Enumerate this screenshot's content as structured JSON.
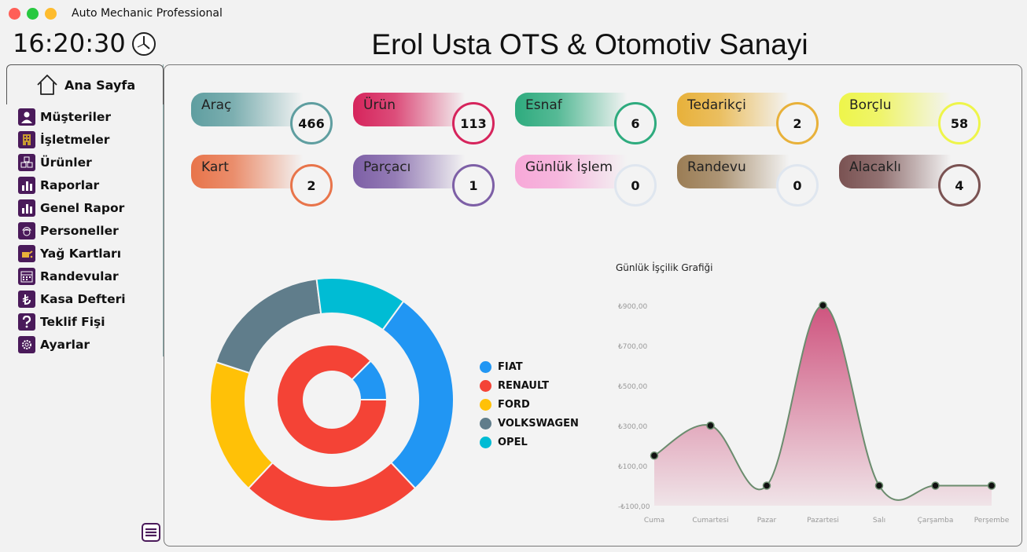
{
  "window": {
    "title": "Auto Mechanic Professional"
  },
  "clock": {
    "time": "16:20:30"
  },
  "header": {
    "title": "Erol Usta OTS & Otomotiv Sanayi"
  },
  "sidebar": {
    "home_label": "Ana Sayfa",
    "items": [
      {
        "label": "Müşteriler",
        "icon": "person-icon"
      },
      {
        "label": "İşletmeler",
        "icon": "building-icon"
      },
      {
        "label": "Ürünler",
        "icon": "boxes-icon"
      },
      {
        "label": "Raporlar",
        "icon": "bar-chart-icon"
      },
      {
        "label": "Genel Rapor",
        "icon": "bar-chart-icon"
      },
      {
        "label": "Personeller",
        "icon": "worker-icon"
      },
      {
        "label": "Yağ Kartları",
        "icon": "oil-can-icon"
      },
      {
        "label": "Randevular",
        "icon": "calendar-icon"
      },
      {
        "label": "Kasa Defteri",
        "icon": "lira-icon"
      },
      {
        "label": "Teklif Fişi",
        "icon": "question-icon"
      },
      {
        "label": "Ayarlar",
        "icon": "gear-icon"
      }
    ]
  },
  "cards": [
    {
      "label": "Araç",
      "value": "466",
      "color": "#5f9ea0"
    },
    {
      "label": "Ürün",
      "value": "113",
      "color": "#d6245c"
    },
    {
      "label": "Esnaf",
      "value": "6",
      "color": "#2eab7e"
    },
    {
      "label": "Tedarikçi",
      "value": "2",
      "color": "#e8b13a"
    },
    {
      "label": "Borçlu",
      "value": "58",
      "color": "#eef54a"
    },
    {
      "label": "Kart",
      "value": "2",
      "color": "#e8744a"
    },
    {
      "label": "Parçacı",
      "value": "1",
      "color": "#7d5fa6"
    },
    {
      "label": "Günlük İşlem",
      "value": "0",
      "color": "#f7a8d8"
    },
    {
      "label": "Randevu",
      "value": "0",
      "color": "#9b7d55"
    },
    {
      "label": "Alacaklı",
      "value": "4",
      "color": "#7a5252"
    }
  ],
  "chart_data": [
    {
      "type": "pie",
      "subtype": "nested-donut",
      "categories": [
        "FIAT",
        "RENAULT",
        "FORD",
        "VOLKSWAGEN",
        "OPEL"
      ],
      "colors": [
        "#2196f3",
        "#f44336",
        "#ffc107",
        "#607d8b",
        "#00bcd4"
      ],
      "series": [
        {
          "name": "outer",
          "values": [
            28,
            24,
            18,
            18,
            12
          ]
        },
        {
          "name": "inner",
          "values": [
            12.5,
            87.5,
            0,
            0,
            0
          ]
        }
      ]
    },
    {
      "type": "area",
      "title": "Günlük İşçilik Grafiği",
      "x": [
        "Cuma",
        "Cumartesi",
        "Pazar",
        "Pazartesi",
        "Salı",
        "Çarşamba",
        "Perşembe"
      ],
      "values": [
        150,
        300,
        0,
        900,
        0,
        0,
        0
      ],
      "yticks": [
        "₺900,00",
        "₺700,00",
        "₺500,00",
        "₺300,00",
        "₺100,00",
        "-₺100,00"
      ],
      "ylim": [
        -100,
        900
      ],
      "fill": "#c8386a",
      "line": "#6b8c6e"
    }
  ]
}
